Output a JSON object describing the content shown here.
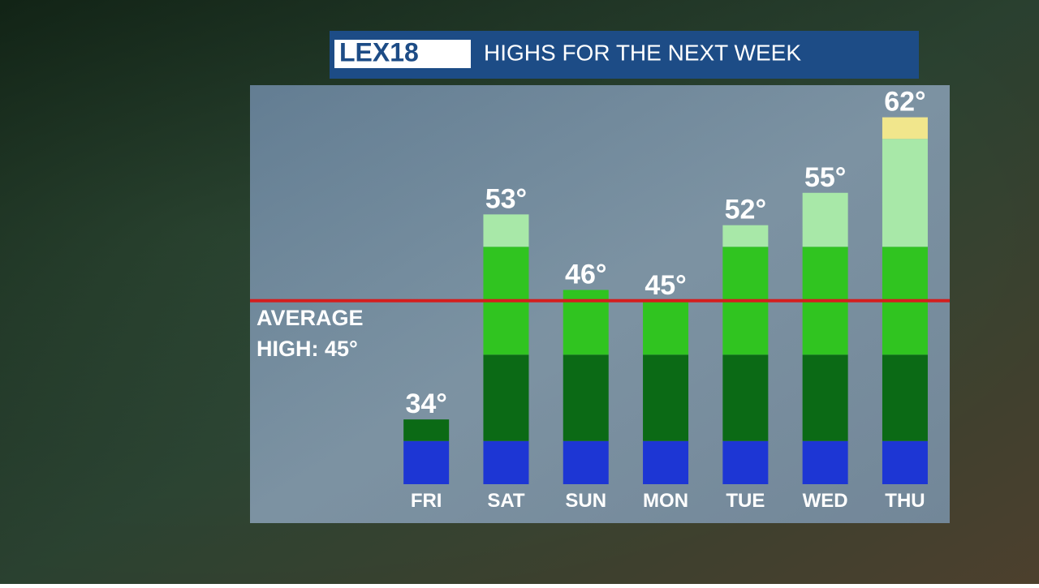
{
  "logo": "LEX18",
  "chart_data": {
    "type": "bar",
    "title": "HIGHS FOR THE NEXT WEEK",
    "categories": [
      "FRI",
      "SAT",
      "SUN",
      "MON",
      "TUE",
      "WED",
      "THU"
    ],
    "values": [
      34,
      53,
      46,
      45,
      52,
      55,
      62
    ],
    "value_labels": [
      "34°",
      "53°",
      "46°",
      "45°",
      "52°",
      "55°",
      "62°"
    ],
    "ylim": [
      28,
      64
    ],
    "color_bands": [
      {
        "to": 32,
        "color": "#1d36d4"
      },
      {
        "to": 40,
        "color": "#0b6a15"
      },
      {
        "to": 50,
        "color": "#30c420"
      },
      {
        "to": 60,
        "color": "#a8e8a8"
      },
      {
        "to": 70,
        "color": "#f1e68c"
      }
    ],
    "reference_line": {
      "value": 45,
      "label": "AVERAGE HIGH: 45°",
      "color": "#d41e1e"
    }
  }
}
